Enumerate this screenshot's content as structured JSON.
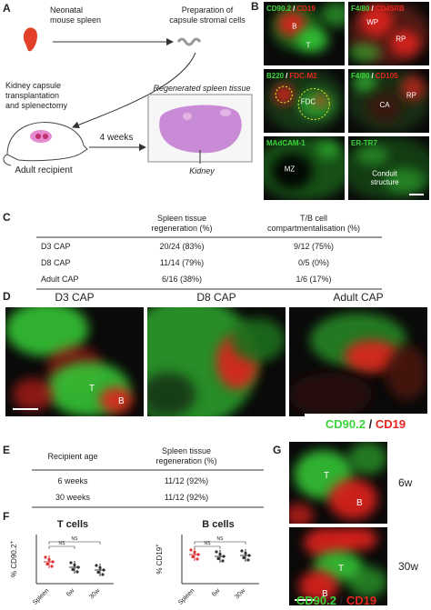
{
  "panel_a": {
    "label": "A",
    "neonatal": [
      "Neonatal",
      "mouse spleen"
    ],
    "preparation": [
      "Preparation of",
      "capsule stromal cells"
    ],
    "transplant": [
      "Kidney capsule",
      "transplantation",
      "and splenectomy"
    ],
    "weeks": "4 weeks",
    "regenerated": "Regenerated spleen tissue",
    "kidney": "Kidney",
    "recipient": "Adult recipient"
  },
  "panel_b": {
    "label": "B",
    "images": [
      {
        "stain": [
          "CD90.2",
          "/",
          "CD19"
        ],
        "marks": [
          "B",
          "T"
        ]
      },
      {
        "stain": [
          "F4/80",
          "/",
          "CD45RB"
        ],
        "marks": [
          "WP",
          "RP"
        ]
      },
      {
        "stain": [
          "B220",
          "/",
          "FDC-M2"
        ],
        "marks": [
          "FDC"
        ]
      },
      {
        "stain": [
          "F4/80",
          "/",
          "CD105"
        ],
        "marks": [
          "CA",
          "RP"
        ]
      },
      {
        "stain": [
          "MAdCAM-1"
        ],
        "marks": [
          "MZ"
        ]
      },
      {
        "stain": [
          "ER-TR7"
        ],
        "marks": [
          "Conduit",
          "structure"
        ]
      }
    ]
  },
  "panel_c": {
    "label": "C",
    "header": [
      [
        "Spleen tissue",
        "regeneration (%)"
      ],
      [
        "T/B cell",
        "compartmentalisation (%)"
      ]
    ],
    "rows": [
      [
        "D3 CAP",
        "20/24 (83%)",
        "9/12 (75%)"
      ],
      [
        "D8 CAP",
        "11/14 (79%)",
        "0/5 (0%)"
      ],
      [
        "Adult CAP",
        "6/16 (38%)",
        "1/6 (17%)"
      ]
    ]
  },
  "panel_d": {
    "label": "D",
    "titles": [
      "D3 CAP",
      "D8 CAP",
      "Adult CAP"
    ],
    "marks": [
      "T",
      "B"
    ],
    "legend": [
      "CD90.2",
      "/",
      "CD19"
    ]
  },
  "panel_e": {
    "label": "E",
    "header": [
      "Recipient age",
      [
        "Spleen tissue",
        "regeneration (%)"
      ]
    ],
    "rows": [
      [
        "6 weeks",
        "11/12 (92%)"
      ],
      [
        "30 weeks",
        "11/12 (92%)"
      ]
    ]
  },
  "panel_f": {
    "label": "F",
    "plots": [
      {
        "title": "T cells",
        "ylabel": [
          "% CD90.2",
          "+"
        ],
        "categories": [
          "Spleen",
          "6w",
          "30w"
        ],
        "ns": [
          "NS",
          "NS"
        ]
      },
      {
        "title": "B cells",
        "ylabel": [
          "% CD19",
          "+"
        ],
        "categories": [
          "Spleen",
          "6w",
          "30w"
        ],
        "ns": [
          "NS",
          "NS"
        ]
      }
    ]
  },
  "panel_g": {
    "label": "G",
    "rows": [
      "6w",
      "30w"
    ],
    "marks": [
      "T",
      "B"
    ],
    "legend": [
      "CD90.2",
      "/",
      "CD19"
    ]
  }
}
